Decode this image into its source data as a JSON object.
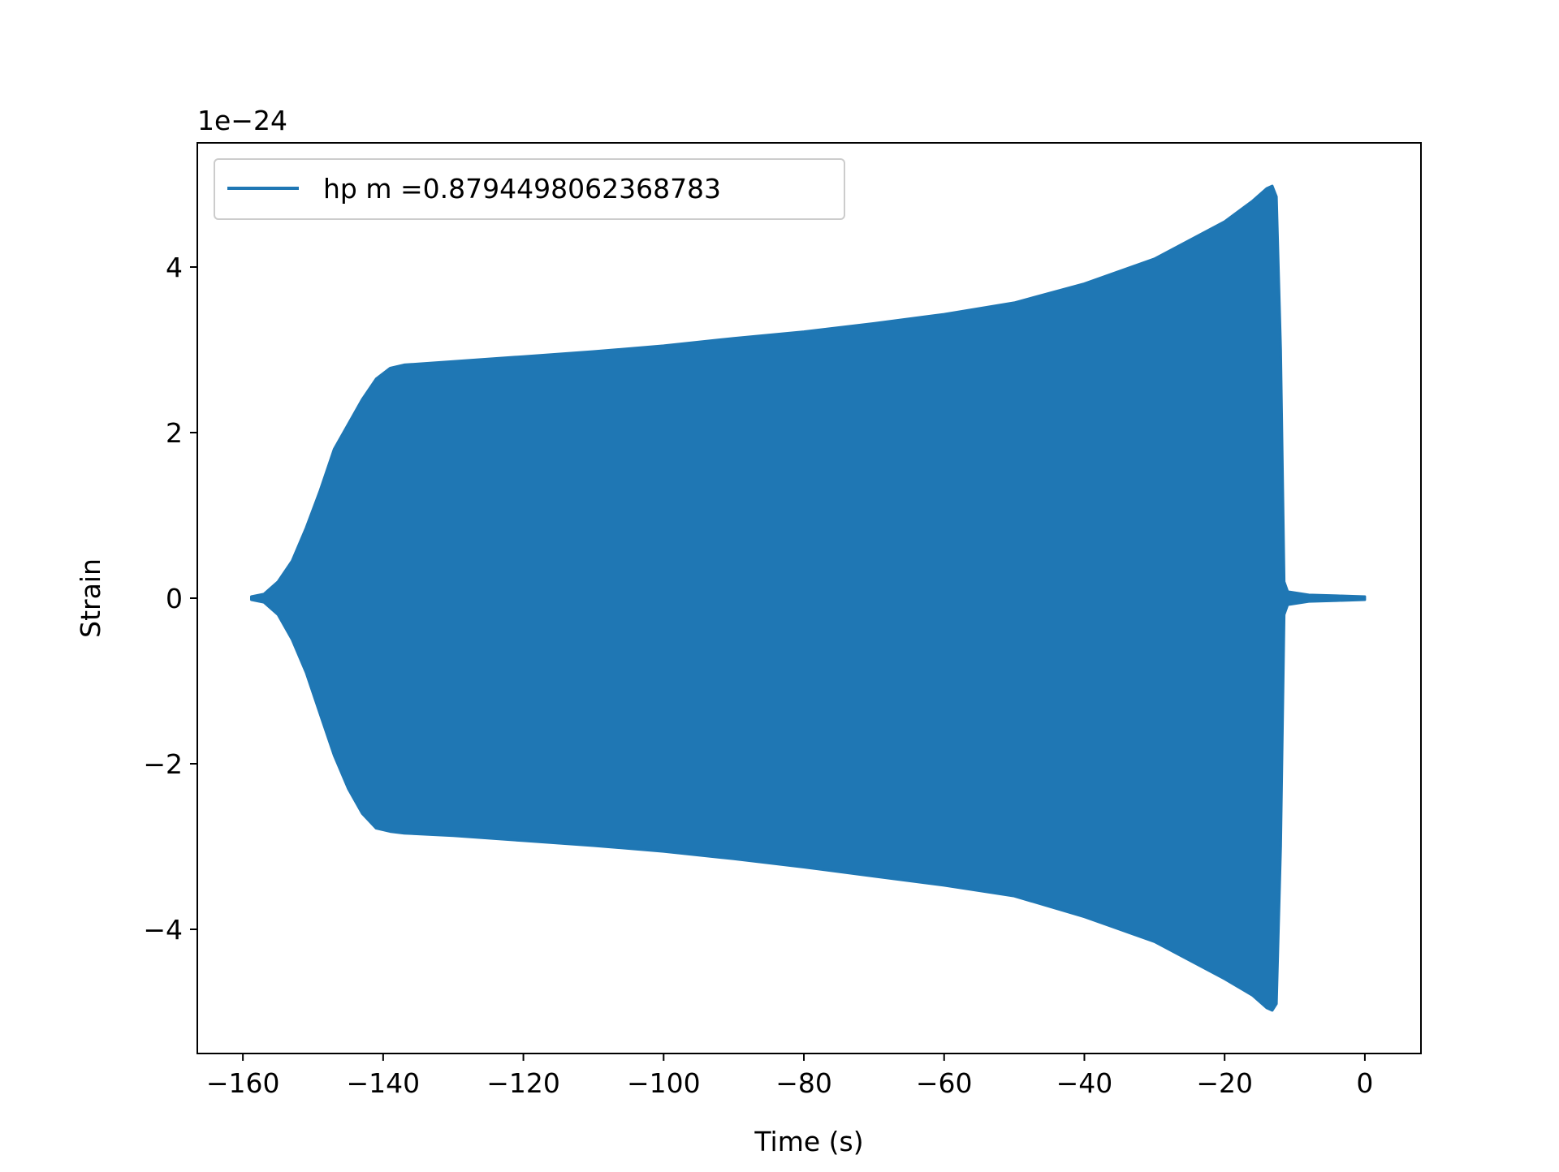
{
  "chart_data": {
    "type": "line",
    "title": "",
    "xlabel": "Time (s)",
    "ylabel": "Strain",
    "y_offset_label": "1e−24",
    "xlim": [
      -166.5,
      8
    ],
    "ylim": [
      -5.5,
      5.5
    ],
    "x_ticks": [
      -160,
      -140,
      -120,
      -100,
      -80,
      -60,
      -40,
      -20,
      0
    ],
    "x_tick_labels": [
      "−160",
      "−140",
      "−120",
      "−100",
      "−80",
      "−60",
      "−40",
      "−20",
      "0"
    ],
    "y_ticks": [
      -4,
      -2,
      0,
      2,
      4
    ],
    "y_tick_labels": [
      "−4",
      "−2",
      "0",
      "2",
      "4"
    ],
    "grid": false,
    "legend_position": "upper-left",
    "series": [
      {
        "name": "hp m =0.8794498062368783",
        "color": "#1f77b4",
        "envelope": {
          "t": [
            -158.8,
            -157,
            -155,
            -153,
            -151,
            -149,
            -147,
            -145,
            -143,
            -141,
            -139,
            -137,
            -130,
            -120,
            -110,
            -100,
            -90,
            -80,
            -70,
            -60,
            -50,
            -40,
            -30,
            -20,
            -16,
            -14,
            -13.2,
            -12.6,
            -12,
            -11.5,
            -11,
            -8,
            -4,
            0
          ],
          "upper": [
            0.02,
            0.05,
            0.2,
            0.45,
            0.85,
            1.3,
            1.8,
            2.1,
            2.4,
            2.65,
            2.78,
            2.82,
            2.86,
            2.92,
            2.98,
            3.05,
            3.14,
            3.22,
            3.32,
            3.43,
            3.57,
            3.8,
            4.1,
            4.55,
            4.8,
            4.95,
            4.98,
            4.85,
            3.0,
            0.2,
            0.08,
            0.04,
            0.03,
            0.02
          ],
          "lower": [
            -0.02,
            -0.05,
            -0.2,
            -0.5,
            -0.9,
            -1.4,
            -1.9,
            -2.3,
            -2.6,
            -2.78,
            -2.82,
            -2.84,
            -2.87,
            -2.93,
            -2.99,
            -3.06,
            -3.15,
            -3.25,
            -3.36,
            -3.47,
            -3.6,
            -3.85,
            -4.15,
            -4.6,
            -4.8,
            -4.95,
            -4.98,
            -4.9,
            -3.0,
            -0.2,
            -0.08,
            -0.04,
            -0.03,
            -0.02
          ]
        }
      }
    ]
  }
}
